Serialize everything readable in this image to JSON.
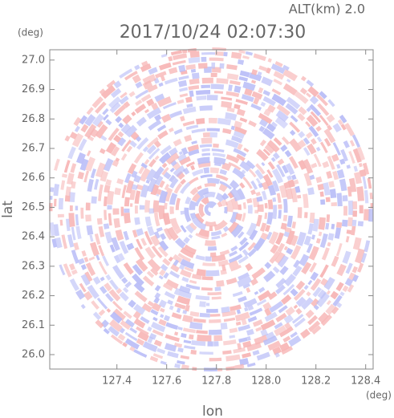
{
  "chart_data": {
    "type": "radar-scan",
    "title": "2017/10/24 02:07:30",
    "altitude_label": "ALT(km) 2.0",
    "x_label": "lon",
    "y_label": "lat",
    "x_unit": "(deg)",
    "y_unit": "(deg)",
    "xlim": [
      127.13,
      128.43
    ],
    "ylim": [
      25.951,
      27.035
    ],
    "xticks": [
      127.4,
      127.6,
      127.8,
      {
        "value": 128.0,
        "label": "128.0"
      },
      128.2,
      128.4
    ],
    "yticks": [
      {
        "value": 26.0,
        "label": "26.0"
      },
      26.1,
      26.2,
      26.3,
      26.4,
      26.5,
      26.6,
      26.7,
      26.8,
      26.9,
      {
        "value": 27.0,
        "label": "27.0"
      }
    ],
    "colors": [
      "#f7b5b5",
      "#b9bdf7"
    ]
  }
}
